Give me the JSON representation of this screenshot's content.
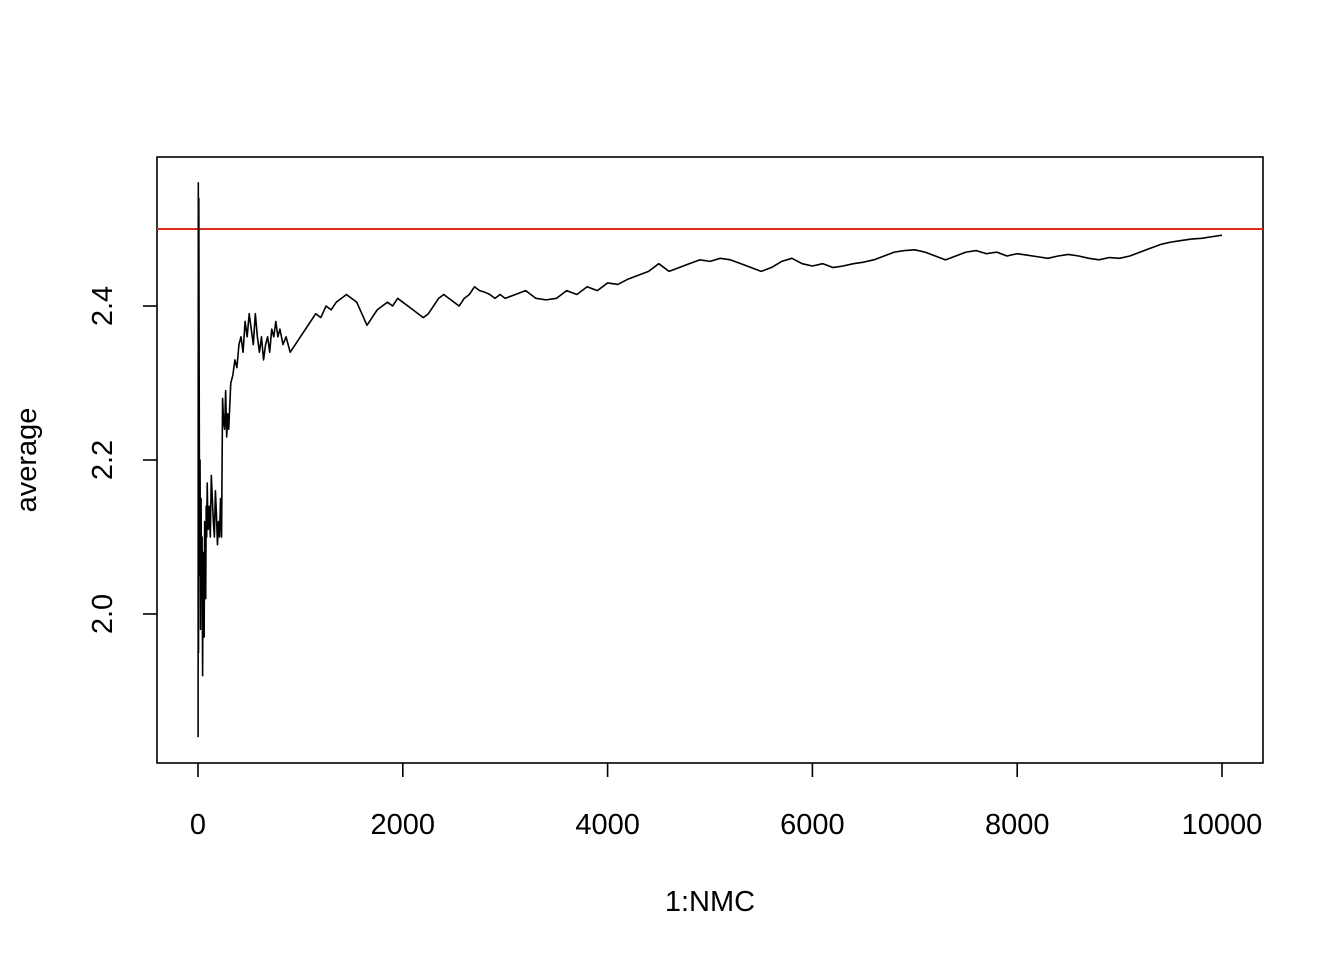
{
  "chart_data": {
    "type": "line",
    "title": "",
    "xlabel": "1:NMC",
    "ylabel": "average",
    "xlim": [
      0,
      10000
    ],
    "ylim": [
      1.835,
      2.565
    ],
    "x_ticks": [
      0,
      2000,
      4000,
      6000,
      8000,
      10000
    ],
    "x_tick_labels": [
      "0",
      "2000",
      "4000",
      "6000",
      "8000",
      "10000"
    ],
    "y_ticks": [
      2.0,
      2.2,
      2.4
    ],
    "y_tick_labels": [
      "2.0",
      "2.2",
      "2.4"
    ],
    "grid": false,
    "reference_line": {
      "y": 2.5,
      "color": "#dd2c1f"
    },
    "line_color": "#000000",
    "series": [
      {
        "x": [
          1,
          3,
          5,
          8,
          12,
          16,
          20,
          25,
          30,
          35,
          40,
          45,
          50,
          55,
          60,
          65,
          70,
          75,
          80,
          85,
          90,
          95,
          100,
          110,
          120,
          130,
          140,
          150,
          160,
          170,
          180,
          190,
          200,
          210,
          220,
          230,
          240,
          250,
          260,
          270,
          280,
          290,
          300,
          320,
          340,
          360,
          380,
          400,
          420,
          440,
          460,
          480,
          500,
          520,
          540,
          560,
          580,
          600,
          620,
          640,
          660,
          680,
          700,
          720,
          740,
          760,
          780,
          800,
          830,
          860,
          900,
          950,
          1000,
          1050,
          1100,
          1150,
          1200,
          1250,
          1300,
          1350,
          1400,
          1450,
          1500,
          1550,
          1600,
          1650,
          1700,
          1750,
          1800,
          1850,
          1900,
          1950,
          2000,
          2050,
          2100,
          2150,
          2200,
          2250,
          2300,
          2350,
          2400,
          2450,
          2500,
          2550,
          2600,
          2650,
          2700,
          2750,
          2800,
          2850,
          2900,
          2950,
          3000,
          3100,
          3200,
          3300,
          3400,
          3500,
          3600,
          3700,
          3800,
          3900,
          4000,
          4100,
          4200,
          4300,
          4400,
          4500,
          4600,
          4700,
          4800,
          4900,
          5000,
          5100,
          5200,
          5300,
          5400,
          5500,
          5600,
          5700,
          5800,
          5900,
          6000,
          6100,
          6200,
          6300,
          6400,
          6500,
          6600,
          6700,
          6800,
          6900,
          7000,
          7100,
          7200,
          7300,
          7400,
          7500,
          7600,
          7700,
          7800,
          7900,
          8000,
          8100,
          8200,
          8300,
          8400,
          8500,
          8600,
          8700,
          8800,
          8900,
          9000,
          9100,
          9200,
          9300,
          9400,
          9500,
          9600,
          9700,
          9800,
          9900,
          10000
        ],
        "y": [
          1.84,
          2.56,
          1.95,
          2.54,
          2.28,
          2.05,
          2.2,
          1.98,
          2.15,
          2.02,
          2.1,
          1.92,
          2.08,
          2.0,
          1.97,
          2.12,
          2.05,
          2.02,
          2.14,
          2.1,
          2.17,
          2.13,
          2.11,
          2.14,
          2.1,
          2.18,
          2.15,
          2.12,
          2.1,
          2.16,
          2.13,
          2.09,
          2.12,
          2.1,
          2.15,
          2.1,
          2.28,
          2.25,
          2.24,
          2.29,
          2.23,
          2.26,
          2.24,
          2.3,
          2.31,
          2.33,
          2.32,
          2.35,
          2.36,
          2.34,
          2.38,
          2.36,
          2.39,
          2.37,
          2.35,
          2.39,
          2.36,
          2.34,
          2.36,
          2.33,
          2.35,
          2.36,
          2.34,
          2.37,
          2.36,
          2.38,
          2.36,
          2.37,
          2.35,
          2.36,
          2.34,
          2.35,
          2.36,
          2.37,
          2.38,
          2.39,
          2.385,
          2.4,
          2.395,
          2.405,
          2.41,
          2.415,
          2.41,
          2.405,
          2.39,
          2.375,
          2.385,
          2.395,
          2.4,
          2.405,
          2.4,
          2.41,
          2.405,
          2.4,
          2.395,
          2.39,
          2.385,
          2.39,
          2.4,
          2.41,
          2.415,
          2.41,
          2.405,
          2.4,
          2.41,
          2.415,
          2.425,
          2.42,
          2.418,
          2.415,
          2.41,
          2.415,
          2.41,
          2.415,
          2.42,
          2.41,
          2.408,
          2.41,
          2.42,
          2.415,
          2.425,
          2.42,
          2.43,
          2.428,
          2.435,
          2.44,
          2.445,
          2.455,
          2.445,
          2.45,
          2.455,
          2.46,
          2.458,
          2.462,
          2.46,
          2.455,
          2.45,
          2.445,
          2.45,
          2.458,
          2.462,
          2.455,
          2.452,
          2.455,
          2.45,
          2.452,
          2.455,
          2.457,
          2.46,
          2.465,
          2.47,
          2.472,
          2.473,
          2.47,
          2.465,
          2.46,
          2.465,
          2.47,
          2.472,
          2.468,
          2.47,
          2.465,
          2.468,
          2.466,
          2.464,
          2.462,
          2.465,
          2.467,
          2.465,
          2.462,
          2.46,
          2.463,
          2.462,
          2.465,
          2.47,
          2.475,
          2.48,
          2.483,
          2.485,
          2.487,
          2.488,
          2.49,
          2.492
        ]
      }
    ]
  }
}
